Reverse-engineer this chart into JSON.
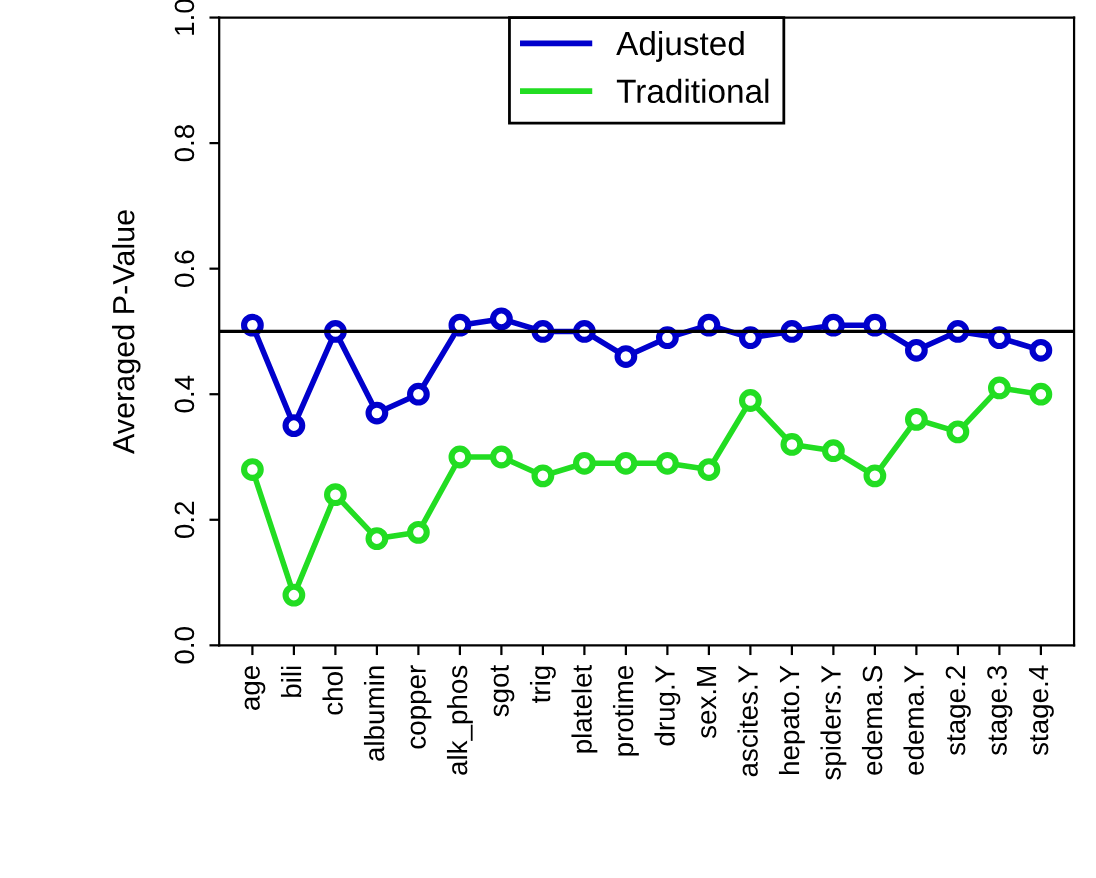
{
  "chart_data": {
    "type": "line",
    "ylabel": "Averaged P-Value",
    "categories": [
      "age",
      "bili",
      "chol",
      "albumin",
      "copper",
      "alk_phos",
      "sgot",
      "trig",
      "platelet",
      "protime",
      "drug.Y",
      "sex.M",
      "ascites.Y",
      "hepato.Y",
      "spiders.Y",
      "edema.S",
      "edema.Y",
      "stage.2",
      "stage.3",
      "stage.4"
    ],
    "series": [
      {
        "name": "Adjusted",
        "color": "#0000cc",
        "values": [
          0.51,
          0.35,
          0.5,
          0.37,
          0.4,
          0.51,
          0.52,
          0.5,
          0.5,
          0.46,
          0.49,
          0.51,
          0.49,
          0.5,
          0.51,
          0.51,
          0.47,
          0.5,
          0.49,
          0.47
        ]
      },
      {
        "name": "Traditional",
        "color": "#22dd22",
        "values": [
          0.28,
          0.08,
          0.24,
          0.17,
          0.18,
          0.3,
          0.3,
          0.27,
          0.29,
          0.29,
          0.29,
          0.28,
          0.39,
          0.32,
          0.31,
          0.27,
          0.36,
          0.34,
          0.41,
          0.4
        ]
      }
    ],
    "ylim": [
      0.0,
      1.0
    ],
    "yticks": [
      {
        "value": 0,
        "label": "0.0"
      },
      {
        "value": 0.2,
        "label": "0.2"
      },
      {
        "value": 0.4,
        "label": "0.4"
      },
      {
        "value": 0.6,
        "label": "0.6"
      },
      {
        "value": 0.8,
        "label": "0.8"
      },
      {
        "value": 1,
        "label": "1.0"
      }
    ],
    "ref_lines": [
      {
        "axis": "y",
        "value": 0.5,
        "color": "#000000",
        "line_style": "solid"
      }
    ],
    "marker": "circle",
    "line_style": "solid",
    "legend": "top",
    "grid": false
  }
}
